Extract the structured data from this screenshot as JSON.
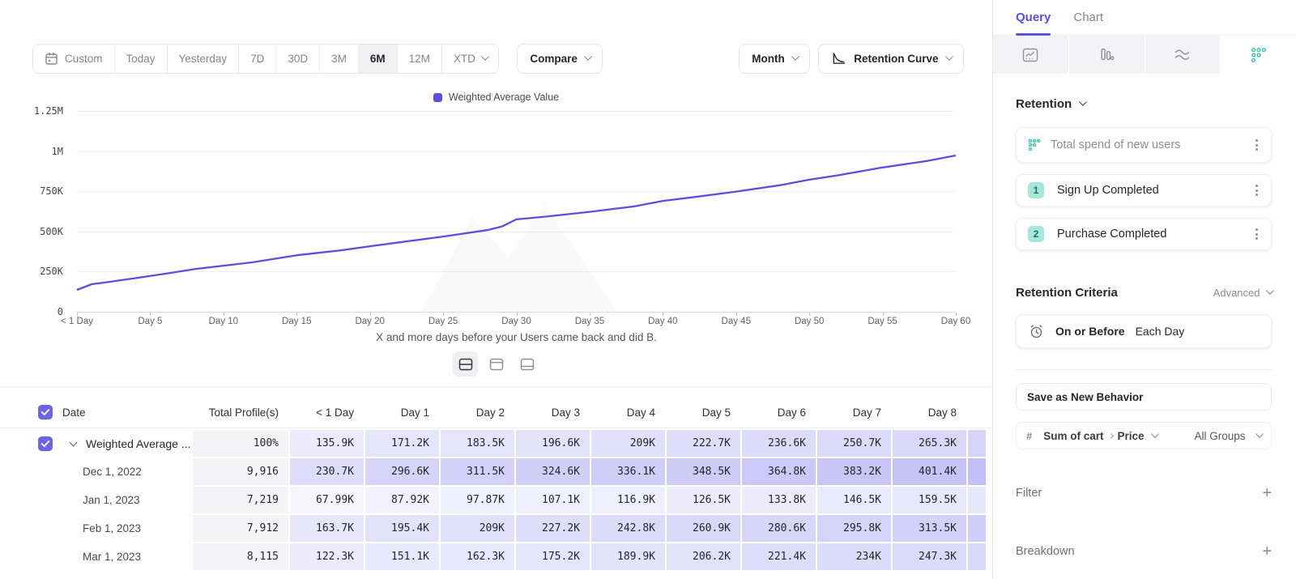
{
  "colors": {
    "accent": "#6254E6",
    "line": "#5B4EE0",
    "teal": "#45C4B4",
    "heat_base_rgb": "98,84,230",
    "checkbox": "#6E62E6"
  },
  "toolbar": {
    "ranges": [
      {
        "label": "Custom",
        "icon": "calendar-icon"
      },
      {
        "label": "Today"
      },
      {
        "label": "Yesterday"
      },
      {
        "label": "7D"
      },
      {
        "label": "30D"
      },
      {
        "label": "3M"
      },
      {
        "label": "6M"
      },
      {
        "label": "12M"
      },
      {
        "label": "XTD",
        "chevron": true
      }
    ],
    "active_range": "6M",
    "compare_label": "Compare",
    "granularity_label": "Month",
    "chart_type_label": "Retention Curve"
  },
  "chart_data": {
    "type": "line",
    "title": "",
    "legend_position": "top-center",
    "grid": "horizontal",
    "xlim": [
      0,
      60
    ],
    "ylim": [
      0,
      1250000
    ],
    "y_ticks": [
      {
        "label": "0",
        "value": 0
      },
      {
        "label": "250K",
        "value": 250000
      },
      {
        "label": "500K",
        "value": 500000
      },
      {
        "label": "750K",
        "value": 750000
      },
      {
        "label": "1M",
        "value": 1000000
      },
      {
        "label": "1.25M",
        "value": 1250000
      }
    ],
    "x_ticks": [
      {
        "label": "< 1 Day",
        "day": 0
      },
      {
        "label": "Day 5",
        "day": 5
      },
      {
        "label": "Day 10",
        "day": 10
      },
      {
        "label": "Day 15",
        "day": 15
      },
      {
        "label": "Day 20",
        "day": 20
      },
      {
        "label": "Day 25",
        "day": 25
      },
      {
        "label": "Day 30",
        "day": 30
      },
      {
        "label": "Day 35",
        "day": 35
      },
      {
        "label": "Day 40",
        "day": 40
      },
      {
        "label": "Day 45",
        "day": 45
      },
      {
        "label": "Day 50",
        "day": 50
      },
      {
        "label": "Day 55",
        "day": 55
      },
      {
        "label": "Day 60",
        "day": 60
      }
    ],
    "x_label_caption": "X and more days before your Users came back and did B.",
    "series": [
      {
        "name": "Weighted Average Value",
        "color": "#5B4EE0",
        "points": [
          [
            0,
            135900
          ],
          [
            1,
            171200
          ],
          [
            2,
            183500
          ],
          [
            3,
            196600
          ],
          [
            4,
            209000
          ],
          [
            5,
            222700
          ],
          [
            6,
            236600
          ],
          [
            7,
            250700
          ],
          [
            8,
            265300
          ],
          [
            10,
            287000
          ],
          [
            12,
            308000
          ],
          [
            15,
            352000
          ],
          [
            18,
            382000
          ],
          [
            20,
            408000
          ],
          [
            22,
            432000
          ],
          [
            25,
            468000
          ],
          [
            28,
            508000
          ],
          [
            29,
            530000
          ],
          [
            30,
            575000
          ],
          [
            32,
            592000
          ],
          [
            35,
            622000
          ],
          [
            38,
            655000
          ],
          [
            40,
            690000
          ],
          [
            42,
            712000
          ],
          [
            45,
            748000
          ],
          [
            48,
            788000
          ],
          [
            50,
            822000
          ],
          [
            52,
            850000
          ],
          [
            55,
            898000
          ],
          [
            58,
            938000
          ],
          [
            60,
            973000
          ]
        ]
      }
    ]
  },
  "layout_toggles": {
    "options": [
      "split-rows",
      "top-panel",
      "bottom-panel"
    ],
    "selected": 0
  },
  "table": {
    "columns": [
      "Date",
      "Total Profile(s)",
      "< 1 Day",
      "Day 1",
      "Day 2",
      "Day 3",
      "Day 4",
      "Day 5",
      "Day 6",
      "Day 7",
      "Day 8"
    ],
    "rows": [
      {
        "label": "Weighted Average ...",
        "expandable": true,
        "checked": true,
        "total": "100%",
        "values": [
          "135.9K",
          "171.2K",
          "183.5K",
          "196.6K",
          "209K",
          "222.7K",
          "236.6K",
          "250.7K",
          "265.3K"
        ],
        "raw_k": [
          135.9,
          171.2,
          183.5,
          196.6,
          209,
          222.7,
          236.6,
          250.7,
          265.3
        ]
      },
      {
        "label": "Dec 1, 2022",
        "total": "9,916",
        "values": [
          "230.7K",
          "296.6K",
          "311.5K",
          "324.6K",
          "336.1K",
          "348.5K",
          "364.8K",
          "383.2K",
          "401.4K"
        ],
        "raw_k": [
          230.7,
          296.6,
          311.5,
          324.6,
          336.1,
          348.5,
          364.8,
          383.2,
          401.4
        ]
      },
      {
        "label": "Jan 1, 2023",
        "total": "7,219",
        "values": [
          "67.99K",
          "87.92K",
          "97.87K",
          "107.1K",
          "116.9K",
          "126.5K",
          "133.8K",
          "146.5K",
          "159.5K"
        ],
        "raw_k": [
          67.99,
          87.92,
          97.87,
          107.1,
          116.9,
          126.5,
          133.8,
          146.5,
          159.5
        ]
      },
      {
        "label": "Feb 1, 2023",
        "total": "7,912",
        "values": [
          "163.7K",
          "195.4K",
          "209K",
          "227.2K",
          "242.8K",
          "260.9K",
          "280.6K",
          "295.8K",
          "313.5K"
        ],
        "raw_k": [
          163.7,
          195.4,
          209,
          227.2,
          242.8,
          260.9,
          280.6,
          295.8,
          313.5
        ]
      },
      {
        "label": "Mar 1, 2023",
        "total": "8,115",
        "values": [
          "122.3K",
          "151.1K",
          "162.3K",
          "175.2K",
          "189.9K",
          "206.2K",
          "221.4K",
          "234K",
          "247.3K"
        ],
        "raw_k": [
          122.3,
          151.1,
          162.3,
          175.2,
          189.9,
          206.2,
          221.4,
          234,
          247.3
        ]
      }
    ]
  },
  "sidebar": {
    "tabs": [
      {
        "label": "Query",
        "active": true
      },
      {
        "label": "Chart",
        "active": false
      }
    ],
    "report_types": [
      {
        "name": "insights",
        "icon": "line-chart-icon",
        "active": false
      },
      {
        "name": "funnels",
        "icon": "bar-chart-icon",
        "active": false
      },
      {
        "name": "flows",
        "icon": "flows-icon",
        "active": false
      },
      {
        "name": "retention",
        "icon": "retention-dots-icon",
        "active": true
      }
    ],
    "section_label": "Retention",
    "behavior": {
      "name": "Total spend of new users",
      "icon": "retention-dots-icon"
    },
    "steps": [
      {
        "index": "1",
        "label": "Sign Up Completed"
      },
      {
        "index": "2",
        "label": "Purchase Completed"
      }
    ],
    "criteria": {
      "label": "Retention Criteria",
      "mode": "Advanced",
      "window_label": "On or Before",
      "frequency_label": "Each Day",
      "icon": "alarm-clock-icon"
    },
    "save_button_label": "Save as New Behavior",
    "metric": {
      "prefix": "#",
      "event": "Sum of cart",
      "property": "Price",
      "groups": "All Groups"
    },
    "filter_label": "Filter",
    "breakdown_label": "Breakdown"
  }
}
